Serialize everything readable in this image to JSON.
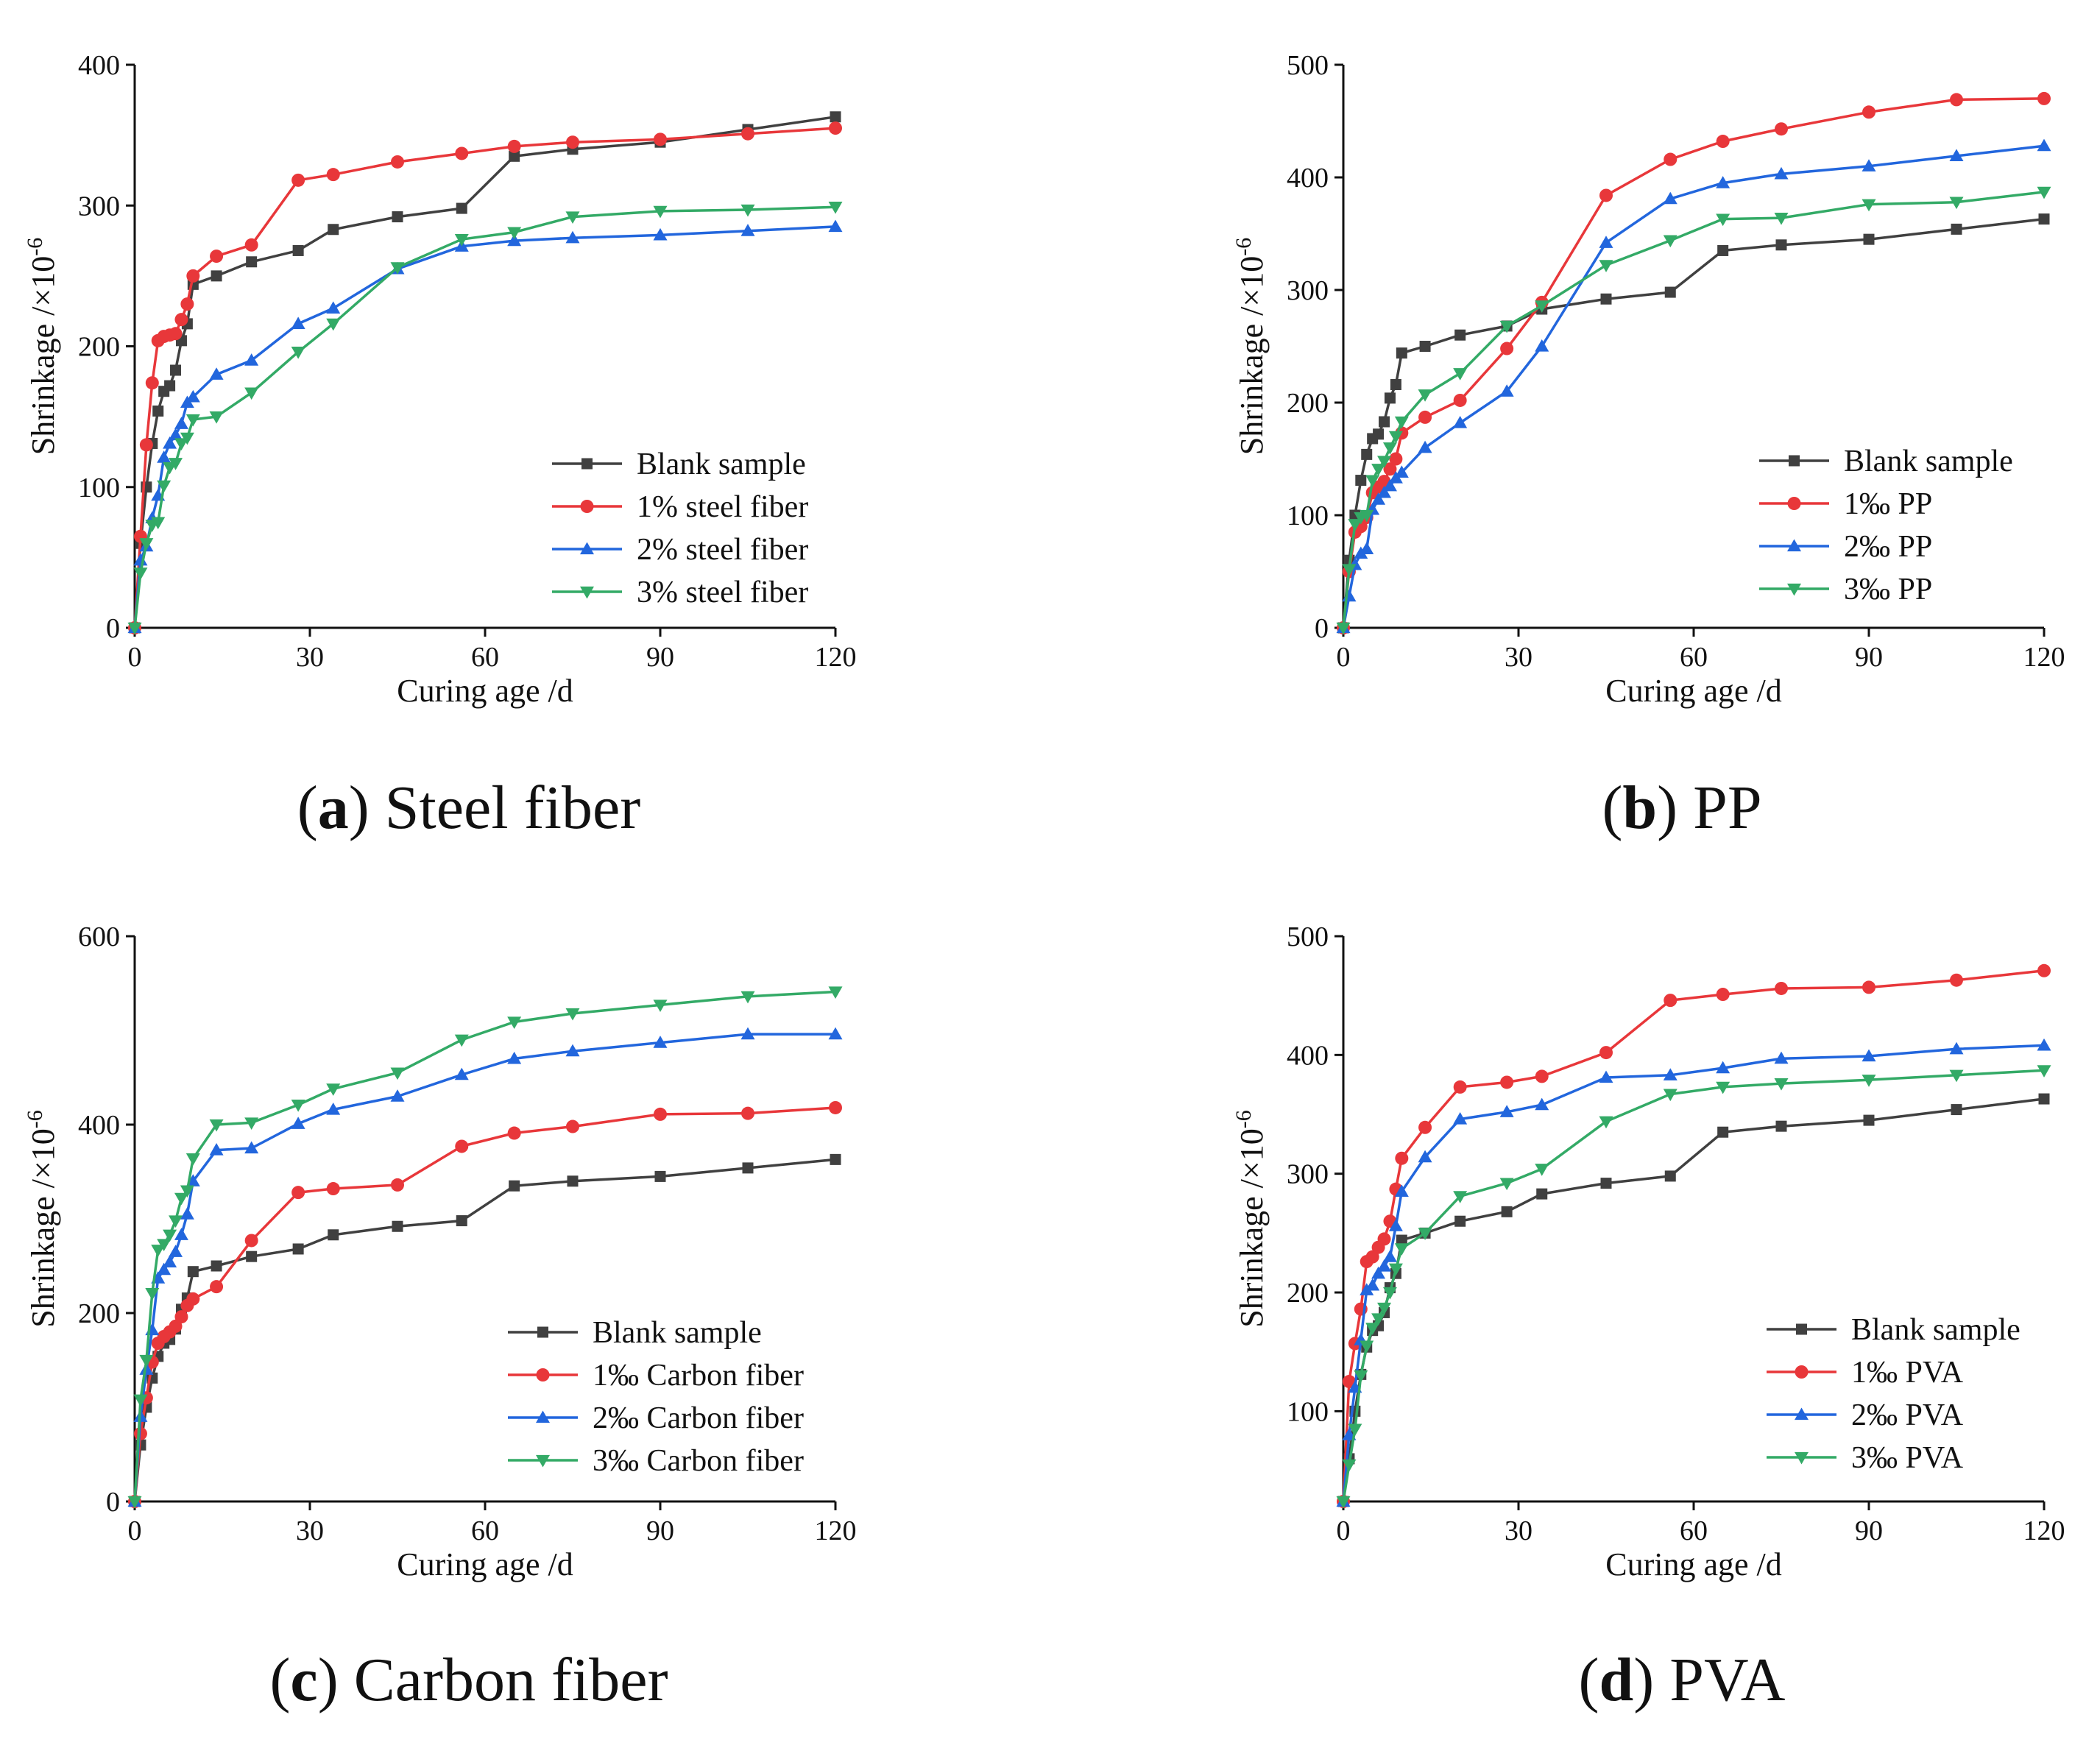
{
  "figure": {
    "panels_count": 4
  },
  "colors": {
    "blank": "#404040",
    "red": "#e8373a",
    "blue": "#2266dd",
    "green": "#33aa66"
  },
  "chart_data": [
    {
      "type": "line",
      "caption_letter": "a",
      "caption_text": "Steel fiber",
      "xlabel": "Curing age /d",
      "ylabel": "Shrinkage /×10",
      "ylabel_exp": "-6",
      "xlim": [
        0,
        120
      ],
      "ylim": [
        0,
        400
      ],
      "xticks": [
        0,
        30,
        60,
        90,
        120
      ],
      "yticks": [
        0,
        100,
        200,
        300,
        400
      ],
      "legend_position": "bottom-right",
      "series": [
        {
          "name": "Blank sample",
          "marker": "square",
          "color_key": "blank",
          "x": [
            0,
            1,
            2,
            3,
            4,
            5,
            6,
            7,
            8,
            9,
            10,
            14,
            20,
            28,
            34,
            45,
            56,
            65,
            75,
            90,
            105,
            120
          ],
          "y": [
            0,
            60,
            100,
            131,
            154,
            168,
            172,
            183,
            204,
            216,
            244,
            250,
            260,
            268,
            283,
            292,
            298,
            335,
            340,
            345,
            354,
            363
          ]
        },
        {
          "name": "1% steel fiber",
          "marker": "circle",
          "color_key": "red",
          "x": [
            0,
            1,
            2,
            3,
            4,
            5,
            6,
            7,
            8,
            9,
            10,
            14,
            20,
            28,
            34,
            45,
            56,
            65,
            75,
            90,
            105,
            120
          ],
          "y": [
            0,
            65,
            130,
            174,
            204,
            207,
            208,
            209,
            219,
            230,
            250,
            264,
            272,
            318,
            322,
            331,
            337,
            342,
            345,
            347,
            351,
            355
          ]
        },
        {
          "name": "2% steel fiber",
          "marker": "triangle-up",
          "color_key": "blue",
          "x": [
            0,
            1,
            2,
            3,
            4,
            5,
            6,
            7,
            8,
            9,
            10,
            14,
            20,
            28,
            34,
            45,
            56,
            65,
            75,
            90,
            105,
            120
          ],
          "y": [
            0,
            48,
            58,
            78,
            94,
            121,
            131,
            137,
            145,
            160,
            164,
            180,
            190,
            216,
            227,
            255,
            271,
            275,
            277,
            279,
            282,
            285
          ]
        },
        {
          "name": "3% steel fiber",
          "marker": "triangle-down",
          "color_key": "green",
          "x": [
            0,
            1,
            2,
            3,
            4,
            5,
            6,
            7,
            8,
            9,
            10,
            14,
            20,
            28,
            34,
            45,
            56,
            65,
            75,
            90,
            105,
            120
          ],
          "y": [
            0,
            39,
            60,
            73,
            75,
            101,
            114,
            117,
            131,
            135,
            148,
            150,
            167,
            196,
            216,
            256,
            276,
            281,
            292,
            296,
            297,
            299
          ]
        }
      ]
    },
    {
      "type": "line",
      "caption_letter": "b",
      "caption_text": "PP",
      "xlabel": "Curing age /d",
      "ylabel": "Shrinkage /×10",
      "ylabel_exp": "-6",
      "xlim": [
        0,
        120
      ],
      "ylim": [
        0,
        500
      ],
      "xticks": [
        0,
        30,
        60,
        90,
        120
      ],
      "yticks": [
        0,
        100,
        200,
        300,
        400,
        500
      ],
      "legend_position": "bottom-right",
      "series": [
        {
          "name": "Blank sample",
          "marker": "square",
          "color_key": "blank",
          "x": [
            0,
            1,
            2,
            3,
            4,
            5,
            6,
            7,
            8,
            9,
            10,
            14,
            20,
            28,
            34,
            45,
            56,
            65,
            75,
            90,
            105,
            120
          ],
          "y": [
            0,
            60,
            100,
            131,
            154,
            168,
            172,
            183,
            204,
            216,
            244,
            250,
            260,
            268,
            283,
            292,
            298,
            335,
            340,
            345,
            354,
            363
          ]
        },
        {
          "name": "1‰ PP",
          "marker": "circle",
          "color_key": "red",
          "x": [
            0,
            1,
            2,
            3,
            4,
            5,
            6,
            7,
            8,
            9,
            10,
            14,
            20,
            28,
            34,
            45,
            56,
            65,
            75,
            90,
            105,
            120
          ],
          "y": [
            0,
            50,
            85,
            90,
            98,
            120,
            125,
            130,
            141,
            150,
            173,
            187,
            202,
            248,
            289,
            384,
            416,
            432,
            443,
            458,
            469,
            470
          ]
        },
        {
          "name": "2‰ PP",
          "marker": "triangle-up",
          "color_key": "blue",
          "x": [
            0,
            1,
            2,
            3,
            4,
            5,
            6,
            7,
            8,
            9,
            10,
            14,
            20,
            28,
            34,
            45,
            56,
            65,
            75,
            90,
            105,
            120
          ],
          "y": [
            0,
            28,
            56,
            66,
            70,
            105,
            114,
            120,
            126,
            133,
            138,
            160,
            182,
            210,
            250,
            342,
            381,
            395,
            403,
            410,
            419,
            428
          ]
        },
        {
          "name": "3‰ PP",
          "marker": "triangle-down",
          "color_key": "green",
          "x": [
            0,
            1,
            2,
            3,
            4,
            5,
            6,
            7,
            8,
            9,
            10,
            14,
            20,
            28,
            34,
            45,
            56,
            65,
            75,
            90,
            105,
            120
          ],
          "y": [
            0,
            52,
            92,
            98,
            100,
            131,
            141,
            148,
            160,
            170,
            183,
            207,
            226,
            268,
            286,
            322,
            344,
            363,
            364,
            376,
            378,
            387
          ]
        }
      ]
    },
    {
      "type": "line",
      "caption_letter": "c",
      "caption_text": "Carbon fiber",
      "xlabel": "Curing age /d",
      "ylabel": "Shrinkage /×10",
      "ylabel_exp": "-6",
      "xlim": [
        0,
        120
      ],
      "ylim": [
        0,
        600
      ],
      "xticks": [
        0,
        30,
        60,
        90,
        120
      ],
      "yticks": [
        0,
        200,
        400,
        600
      ],
      "legend_position": "bottom-right",
      "series": [
        {
          "name": "Blank sample",
          "marker": "square",
          "color_key": "blank",
          "x": [
            0,
            1,
            2,
            3,
            4,
            5,
            6,
            7,
            8,
            9,
            10,
            14,
            20,
            28,
            34,
            45,
            56,
            65,
            75,
            90,
            105,
            120
          ],
          "y": [
            0,
            60,
            100,
            131,
            154,
            168,
            172,
            183,
            204,
            216,
            244,
            250,
            260,
            268,
            283,
            292,
            298,
            335,
            340,
            345,
            354,
            363
          ]
        },
        {
          "name": "1‰ Carbon fiber",
          "marker": "circle",
          "color_key": "red",
          "x": [
            0,
            1,
            2,
            3,
            4,
            5,
            6,
            7,
            8,
            9,
            10,
            14,
            20,
            28,
            34,
            45,
            56,
            65,
            75,
            90,
            105,
            120
          ],
          "y": [
            0,
            72,
            110,
            148,
            168,
            175,
            180,
            186,
            196,
            208,
            215,
            228,
            277,
            328,
            332,
            336,
            377,
            391,
            398,
            411,
            412,
            418
          ]
        },
        {
          "name": "2‰ Carbon fiber",
          "marker": "triangle-up",
          "color_key": "blue",
          "x": [
            0,
            1,
            2,
            3,
            4,
            5,
            6,
            7,
            8,
            9,
            10,
            14,
            20,
            28,
            34,
            45,
            56,
            65,
            75,
            90,
            105,
            120
          ],
          "y": [
            0,
            90,
            140,
            182,
            237,
            246,
            254,
            265,
            283,
            305,
            340,
            373,
            375,
            401,
            416,
            430,
            453,
            470,
            478,
            487,
            496,
            496
          ]
        },
        {
          "name": "3‰ Carbon fiber",
          "marker": "triangle-down",
          "color_key": "green",
          "x": [
            0,
            1,
            2,
            3,
            4,
            5,
            6,
            7,
            8,
            9,
            10,
            14,
            20,
            28,
            34,
            45,
            56,
            65,
            75,
            90,
            105,
            120
          ],
          "y": [
            0,
            108,
            150,
            221,
            267,
            273,
            283,
            298,
            322,
            330,
            364,
            400,
            402,
            421,
            438,
            455,
            490,
            509,
            518,
            527,
            536,
            541
          ]
        }
      ]
    },
    {
      "type": "line",
      "caption_letter": "d",
      "caption_text": "PVA",
      "xlabel": "Curing age /d",
      "ylabel": "Shrinkage /×10",
      "ylabel_exp": "-6",
      "xlim": [
        0,
        120
      ],
      "ylim": [
        24,
        500
      ],
      "xticks": [
        0,
        30,
        60,
        90,
        120
      ],
      "yticks": [
        100,
        200,
        300,
        400,
        500
      ],
      "legend_position": "bottom-right",
      "series": [
        {
          "name": "Blank sample",
          "marker": "square",
          "color_key": "blank",
          "x": [
            0,
            1,
            2,
            3,
            4,
            5,
            6,
            7,
            8,
            9,
            10,
            14,
            20,
            28,
            34,
            45,
            56,
            65,
            75,
            90,
            105,
            120
          ],
          "y": [
            24,
            60,
            100,
            131,
            154,
            168,
            172,
            183,
            204,
            216,
            244,
            250,
            260,
            268,
            283,
            292,
            298,
            335,
            340,
            345,
            354,
            363
          ]
        },
        {
          "name": "1‰ PVA",
          "marker": "circle",
          "color_key": "red",
          "x": [
            0,
            1,
            2,
            3,
            4,
            5,
            6,
            7,
            8,
            9,
            10,
            14,
            20,
            28,
            34,
            45,
            56,
            65,
            75,
            90,
            105,
            120
          ],
          "y": [
            24,
            125,
            157,
            186,
            226,
            230,
            238,
            245,
            260,
            287,
            313,
            339,
            373,
            377,
            382,
            402,
            446,
            451,
            456,
            457,
            463,
            471
          ]
        },
        {
          "name": "2‰ PVA",
          "marker": "triangle-up",
          "color_key": "blue",
          "x": [
            0,
            1,
            2,
            3,
            4,
            5,
            6,
            7,
            8,
            9,
            10,
            14,
            20,
            28,
            34,
            45,
            56,
            65,
            75,
            90,
            105,
            120
          ],
          "y": [
            24,
            80,
            120,
            160,
            202,
            206,
            216,
            222,
            230,
            256,
            285,
            314,
            346,
            352,
            358,
            381,
            383,
            389,
            397,
            399,
            405,
            408
          ]
        },
        {
          "name": "3‰ PVA",
          "marker": "triangle-down",
          "color_key": "green",
          "x": [
            0,
            1,
            2,
            3,
            4,
            5,
            6,
            7,
            8,
            9,
            10,
            14,
            20,
            28,
            34,
            45,
            56,
            65,
            75,
            90,
            105,
            120
          ],
          "y": [
            24,
            55,
            85,
            130,
            155,
            170,
            178,
            187,
            200,
            220,
            237,
            250,
            281,
            292,
            304,
            344,
            367,
            373,
            376,
            379,
            383,
            387
          ]
        }
      ]
    }
  ]
}
